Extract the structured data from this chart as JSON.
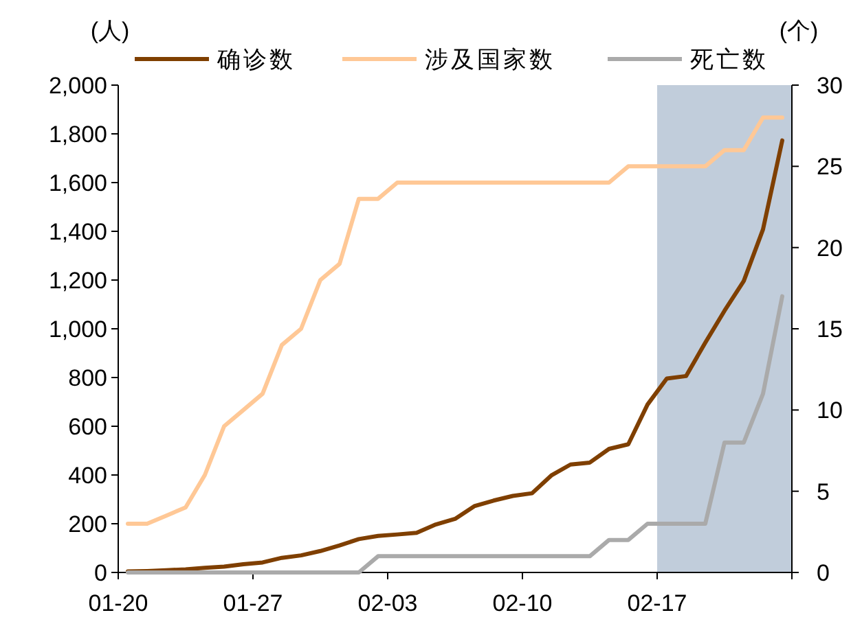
{
  "chart_data": {
    "type": "line",
    "ylabel": "(人)",
    "y2label": "(个)",
    "x": [
      "--01-20T12:00",
      "--01-21T12:00",
      "--01-22T12:00",
      "--01-23T12:00",
      "--01-24T12:00",
      "--01-25T12:00",
      "--01-26T12:00",
      "--01-27T12:00",
      "--01-28T12:00",
      "--01-29T12:00",
      "--01-30T12:00",
      "--01-31T12:00",
      "--02-01T12:00",
      "--02-02T12:00",
      "--02-03T12:00",
      "--02-04T12:00",
      "--02-05T12:00",
      "--02-06T12:00",
      "--02-07T12:00",
      "--02-08T12:00",
      "--02-09T12:00",
      "--02-10T12:00",
      "--02-11T12:00",
      "--02-12T12:00",
      "--02-13T12:00",
      "--02-14T12:00",
      "--02-15T12:00",
      "--02-16T12:00",
      "--02-17T12:00",
      "--02-18T12:00",
      "--02-19T12:00",
      "--02-20T12:00",
      "--02-21T12:00",
      "--02-22T12:00",
      "--02-23T12:00"
    ],
    "series": [
      {
        "name": "确诊数",
        "color": "#7f3f00",
        "values": [
          4,
          6,
          9,
          13,
          19,
          24,
          34,
          41,
          60,
          70,
          88,
          111,
          137,
          150,
          156,
          163,
          197,
          220,
          272,
          295,
          314,
          325,
          398,
          443,
          451,
          507,
          526,
          689,
          796,
          806,
          943,
          1074,
          1196,
          1408,
          1773
        ]
      },
      {
        "name": "涉及国家数",
        "color": "#ffc896",
        "axis": "y2",
        "values": [
          3,
          3,
          3.5,
          4,
          6,
          9,
          10,
          11,
          14,
          15,
          18,
          19,
          23,
          23,
          24,
          24,
          24,
          24,
          24,
          24,
          24,
          24,
          24,
          24,
          24,
          24,
          25,
          25,
          25,
          25,
          25,
          26,
          26,
          28,
          28
        ]
      },
      {
        "name": "死亡数",
        "color": "#aaaaaa",
        "axis": "y2",
        "values": [
          0,
          0,
          0,
          0,
          0,
          0,
          0,
          0,
          0,
          0,
          0,
          0,
          0,
          1,
          1,
          1,
          1,
          1,
          1,
          1,
          1,
          1,
          1,
          1,
          1,
          2,
          2,
          3,
          3,
          3,
          3,
          8,
          8,
          11,
          17
        ]
      }
    ],
    "xlim": [
      "--01-20",
      "--02-24"
    ],
    "xticks": [
      {
        "value": "--01-20",
        "label": "01-20"
      },
      {
        "value": "--01-27",
        "label": "01-27"
      },
      {
        "value": "--02-03",
        "label": "02-03"
      },
      {
        "value": "--02-10",
        "label": "02-10"
      },
      {
        "value": "--02-17",
        "label": "02-17"
      },
      {
        "value": "--02-24",
        "label": null
      }
    ],
    "ylim": [
      0,
      2000
    ],
    "yticks": [
      0,
      {
        "value": 200,
        "label": "200"
      },
      {
        "value": 400,
        "label": "400"
      },
      {
        "value": 600,
        "label": "600"
      },
      {
        "value": 800,
        "label": "800"
      },
      {
        "value": 1000,
        "label": "1,000"
      },
      {
        "value": 1200,
        "label": "1,200"
      },
      {
        "value": 1400,
        "label": "1,400"
      },
      {
        "value": 1600,
        "label": "1,600"
      },
      {
        "value": 1800,
        "label": "1,800"
      },
      {
        "value": 2000,
        "label": "2,000"
      }
    ],
    "y2lim": [
      0,
      30
    ],
    "y2ticks": [
      0,
      5,
      10,
      15,
      20,
      25,
      30
    ],
    "bands": [
      {
        "axis": "x",
        "from": "--02-17",
        "to": "--02-24",
        "color": "#c1cddb"
      }
    ],
    "legend": "top",
    "grid": false,
    "marker": "none",
    "line_style": "solid"
  }
}
